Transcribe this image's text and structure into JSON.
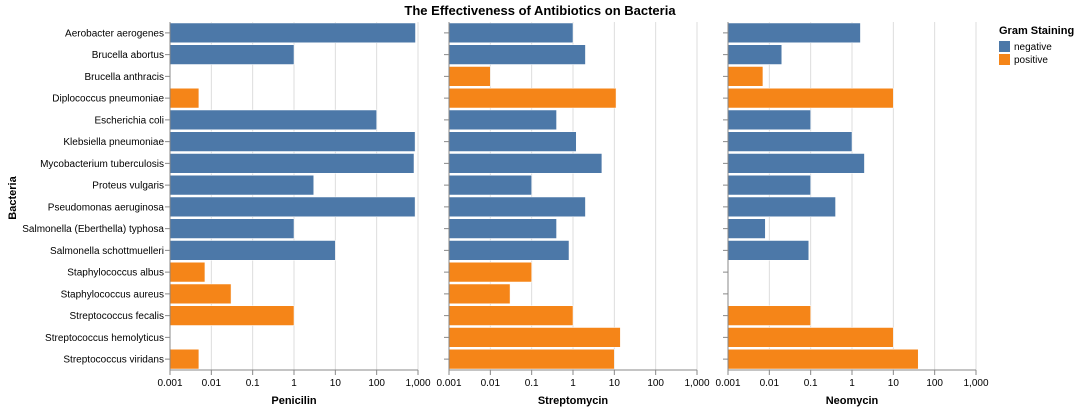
{
  "chart_data": {
    "type": "bar",
    "orientation": "horizontal",
    "title": "The Effectiveness of Antibiotics on Bacteria",
    "ylabel": "Bacteria",
    "x_scale": "log",
    "x_domain": [
      0.001,
      1000
    ],
    "x_ticks": [
      "0.001",
      "0.01",
      "0.1",
      "1",
      "10",
      "100",
      "1,000"
    ],
    "grid": true,
    "legend": {
      "title": "Gram Staining",
      "position": "top-right",
      "items": [
        {
          "label": "negative",
          "color": "#4c78a8"
        },
        {
          "label": "positive",
          "color": "#f58518"
        }
      ]
    },
    "categories": [
      "Aerobacter aerogenes",
      "Brucella abortus",
      "Brucella anthracis",
      "Diplococcus pneumoniae",
      "Escherichia coli",
      "Klebsiella pneumoniae",
      "Mycobacterium tuberculosis",
      "Proteus vulgaris",
      "Pseudomonas aeruginosa",
      "Salmonella (Eberthella) typhosa",
      "Salmonella schottmuelleri",
      "Staphylococcus albus",
      "Staphylococcus aureus",
      "Streptococcus fecalis",
      "Streptococcus hemolyticus",
      "Streptococcus viridans"
    ],
    "gram": [
      "negative",
      "negative",
      "positive",
      "positive",
      "negative",
      "negative",
      "negative",
      "negative",
      "negative",
      "negative",
      "negative",
      "positive",
      "positive",
      "positive",
      "positive",
      "positive"
    ],
    "panels": [
      {
        "xlabel": "Penicilin",
        "values": [
          870,
          1,
          0.001,
          0.005,
          100,
          850,
          800,
          3,
          850,
          1,
          10,
          0.007,
          0.03,
          1,
          0.001,
          0.005
        ]
      },
      {
        "xlabel": "Streptomycin",
        "values": [
          1,
          2,
          0.01,
          11,
          0.4,
          1.2,
          5,
          0.1,
          2,
          0.4,
          0.8,
          0.1,
          0.03,
          1,
          14,
          10
        ]
      },
      {
        "xlabel": "Neomycin",
        "values": [
          1.6,
          0.02,
          0.007,
          10,
          0.1,
          1,
          2,
          0.1,
          0.4,
          0.008,
          0.09,
          0.001,
          0.001,
          0.1,
          10,
          40
        ]
      }
    ]
  }
}
